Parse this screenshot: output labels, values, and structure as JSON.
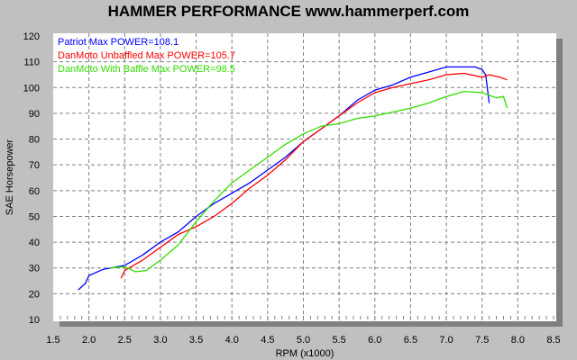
{
  "chart_data": {
    "type": "line",
    "title": "HAMMER PERFORMANCE www.hammerperf.com",
    "xlabel": "RPM (x1000)",
    "ylabel": "SAE Horsepower",
    "xlim": [
      1.5,
      8.5
    ],
    "ylim": [
      10,
      120
    ],
    "xticks": [
      "1.5",
      "2.0",
      "2.5",
      "3.0",
      "3.5",
      "4.0",
      "4.5",
      "5.0",
      "5.5",
      "6.0",
      "6.5",
      "7.0",
      "7.5",
      "8.0",
      "8.5"
    ],
    "yticks": [
      "10",
      "20",
      "30",
      "40",
      "50",
      "60",
      "70",
      "80",
      "90",
      "100",
      "110",
      "120"
    ],
    "grid": true,
    "legend_placement": "top-left",
    "series": [
      {
        "name": "Patriot  Max POWER=108.1",
        "color": "#0000ff",
        "x": [
          1.85,
          1.95,
          2.0,
          2.2,
          2.5,
          2.75,
          3.0,
          3.25,
          3.5,
          3.75,
          4.0,
          4.25,
          4.5,
          4.75,
          5.0,
          5.25,
          5.5,
          5.75,
          6.0,
          6.25,
          6.5,
          6.75,
          7.0,
          7.25,
          7.4,
          7.5,
          7.55,
          7.6
        ],
        "y": [
          21.5,
          24,
          27,
          29.5,
          31,
          35,
          40,
          44,
          50,
          55,
          59,
          63,
          68,
          73,
          79,
          84,
          89,
          95,
          99,
          101,
          104,
          106,
          108,
          108,
          108,
          107,
          105,
          94
        ]
      },
      {
        "name": "DanMoto Unbaffled  Max POWER=105.7",
        "color": "#ff0000",
        "x": [
          2.45,
          2.5,
          2.75,
          3.0,
          3.25,
          3.5,
          3.75,
          4.0,
          4.25,
          4.5,
          4.75,
          5.0,
          5.25,
          5.5,
          5.75,
          6.0,
          6.25,
          6.5,
          6.75,
          7.0,
          7.25,
          7.5,
          7.6,
          7.75,
          7.85
        ],
        "y": [
          26,
          29,
          33,
          38,
          43,
          46,
          50,
          55,
          61,
          66,
          72,
          79,
          84,
          89,
          94,
          98,
          100,
          101.5,
          103,
          105,
          105.5,
          104,
          105,
          104,
          103
        ]
      },
      {
        "name": "DanMoto With Baffle  Max POWER=98.5",
        "color": "#33dd00",
        "x": [
          2.3,
          2.5,
          2.65,
          2.8,
          3.0,
          3.25,
          3.5,
          3.75,
          4.0,
          4.25,
          4.5,
          4.75,
          5.0,
          5.25,
          5.5,
          5.75,
          6.0,
          6.5,
          6.75,
          7.0,
          7.25,
          7.5,
          7.7,
          7.8,
          7.85
        ],
        "y": [
          30,
          30.5,
          28.5,
          29,
          33,
          39,
          48,
          56,
          63,
          68,
          73,
          78,
          82,
          85,
          86,
          88,
          89,
          92,
          94,
          96.5,
          98.5,
          98,
          96,
          96.5,
          92
        ]
      }
    ]
  }
}
